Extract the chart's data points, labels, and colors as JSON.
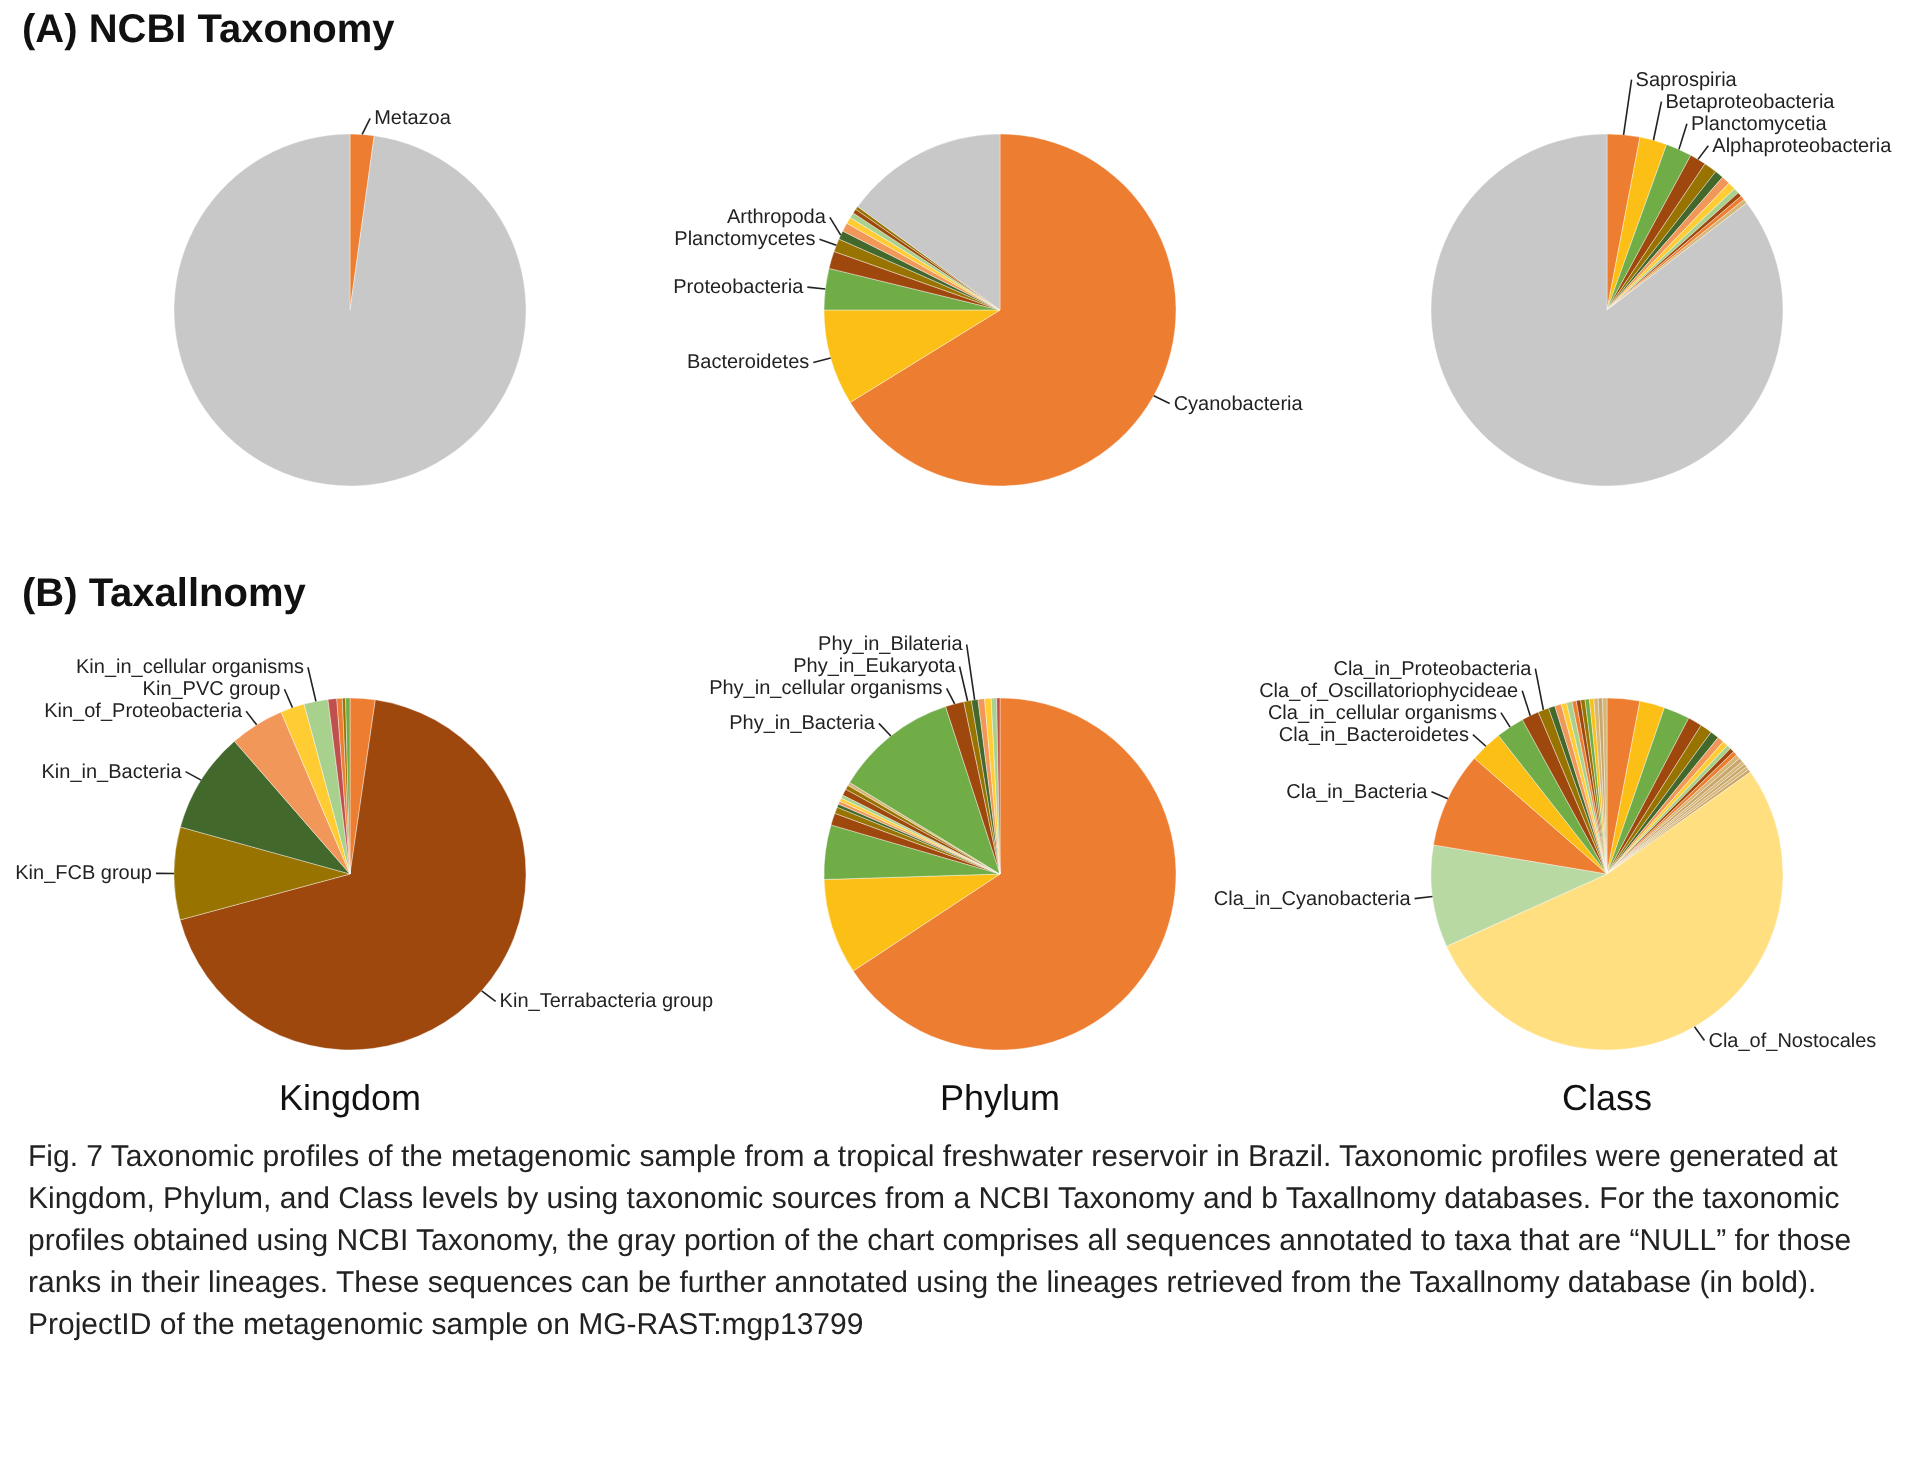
{
  "chart_data": [
    {
      "type": "pie",
      "title": "(A) NCBI Taxonomy",
      "categories": [
        "Metazoa",
        null
      ],
      "values": [
        2.2,
        97.8
      ],
      "colors": [
        "#ed7d31",
        "#c8c8c8"
      ]
    },
    {
      "type": "pie",
      "categories": [
        "Cyanobacteria",
        "Bacteroidetes",
        "Proteobacteria",
        null,
        "Planctomycetes",
        "Arthropoda",
        null,
        null,
        null,
        null,
        null,
        null
      ],
      "values": [
        66.2,
        8.8,
        3.8,
        1.6,
        1.2,
        0.8,
        0.8,
        0.6,
        0.5,
        0.4,
        0.3,
        15.0
      ],
      "colors": [
        "#ed7d31",
        "#fbbf16",
        "#70ad47",
        "#9e480e",
        "#997300",
        "#43682b",
        "#f1975a",
        "#ffcd33",
        "#a9d18e",
        "#9e480e",
        "#997300",
        "#c8c8c8"
      ]
    },
    {
      "type": "pie",
      "categories": [
        "Saprospiria",
        "Betaproteobacteria",
        "Planctomycetia",
        "Alphaproteobacteria",
        null,
        null,
        null,
        null,
        null,
        null,
        null,
        null,
        null
      ],
      "values": [
        3.0,
        2.5,
        2.4,
        1.5,
        1.2,
        0.8,
        0.8,
        0.7,
        0.5,
        0.4,
        0.4,
        0.4,
        85.4
      ],
      "colors": [
        "#ed7d31",
        "#fbbf16",
        "#70ad47",
        "#9e480e",
        "#997300",
        "#43682b",
        "#f1975a",
        "#ffcd33",
        "#a9d18e",
        "#9e480e",
        "#ed7d31",
        "#d6b676",
        "#c8c8c8"
      ]
    },
    {
      "type": "pie",
      "title": "(B) Taxallnomy",
      "xlabel": "Kingdom",
      "categories": [
        null,
        "Kin_Terrabacteria group",
        "Kin_FCB group",
        "Kin_in_Bacteria",
        "Kin_of_Proteobacteria",
        "Kin_PVC group",
        "Kin_in_cellular organisms",
        null,
        null,
        null,
        null
      ],
      "values": [
        2.3,
        68.5,
        8.5,
        9.3,
        5.0,
        2.2,
        2.2,
        0.8,
        0.5,
        0.3,
        0.4
      ],
      "colors": [
        "#ed7d31",
        "#9e480e",
        "#997300",
        "#43682b",
        "#f1975a",
        "#ffcd33",
        "#a9d18e",
        "#c0504d",
        "#ed7d31",
        "#997300",
        "#70ad47"
      ]
    },
    {
      "type": "pie",
      "xlabel": "Phylum",
      "categories": [
        null,
        null,
        null,
        null,
        null,
        null,
        null,
        null,
        null,
        null,
        null,
        null,
        "Phy_in_Bacteria",
        "Phy_in_cellular organisms",
        "Phy_in_Eukaryota",
        "Phy_in_Bilateria",
        null,
        null,
        null,
        null
      ],
      "values": [
        65.7,
        8.8,
        5.0,
        1.1,
        0.6,
        0.3,
        0.3,
        0.3,
        0.3,
        0.6,
        0.4,
        0.3,
        11.3,
        1.7,
        0.7,
        0.6,
        0.6,
        0.6,
        0.5,
        0.3
      ],
      "colors": [
        "#ed7d31",
        "#fbbf16",
        "#70ad47",
        "#9e480e",
        "#997300",
        "#43682b",
        "#f1975a",
        "#ffcd33",
        "#a9d18e",
        "#9e480e",
        "#997300",
        "#d6b676",
        "#70ad47",
        "#9e480e",
        "#997300",
        "#43682b",
        "#f1975a",
        "#ffcd33",
        "#a9d18e",
        "#c0504d"
      ]
    },
    {
      "type": "pie",
      "xlabel": "Class",
      "categories": [
        null,
        null,
        null,
        null,
        null,
        null,
        null,
        null,
        null,
        null,
        null,
        null,
        null,
        null,
        null,
        null,
        null,
        "Cla_of_Nostocales",
        "Cla_in_Cyanobacteria",
        "Cla_in_Bacteria",
        "Cla_in_Bacteroidetes",
        "Cla_in_cellular organisms",
        "Cla_of_Oscillatoriophycideae",
        "Cla_in_Proteobacteria",
        null,
        null,
        null,
        null,
        null,
        null,
        null,
        null,
        null,
        null,
        null,
        null
      ],
      "values": [
        3.0,
        2.3,
        2.4,
        1.3,
        1.1,
        0.8,
        0.6,
        0.5,
        0.4,
        0.4,
        0.4,
        0.4,
        0.4,
        0.3,
        0.3,
        0.3,
        0.3,
        53.2,
        9.4,
        8.8,
        3.0,
        2.6,
        1.6,
        1.0,
        0.6,
        0.6,
        0.5,
        0.5,
        0.4,
        0.4,
        0.4,
        0.4,
        0.4,
        0.4,
        0.4,
        0.4
      ],
      "colors": [
        "#ed7d31",
        "#fbbf16",
        "#70ad47",
        "#9e480e",
        "#997300",
        "#43682b",
        "#f1975a",
        "#ffcd33",
        "#a9d18e",
        "#9e480e",
        "#ed7d31",
        "#d6b676",
        "#c9a66b",
        "#d6b676",
        "#c9a66b",
        "#d6b676",
        "#c9a66b",
        "#ffdf80",
        "#b8d9a2",
        "#ed7d31",
        "#fbbf16",
        "#70ad47",
        "#9e480e",
        "#997300",
        "#43682b",
        "#f1975a",
        "#ffcd33",
        "#a9d18e",
        "#ed7d31",
        "#9e480e",
        "#997300",
        "#70ad47",
        "#fbbf16",
        "#d6b676",
        "#c9a66b",
        "#d6b676"
      ],
      "annotations": [
        "Fig. 7  Taxonomic profiles of the metagenomic sample from a tropical freshwater reservoir in Brazil. Taxonomic profiles were generated at Kingdom, Phylum, and Class levels by using taxonomic sources from a NCBI Taxonomy and b Taxallnomy databases. For the taxonomic profiles obtained using NCBI Taxonomy, the gray portion of the chart comprises all sequences annotated to taxa that are “NULL” for those ranks in their lineages. These sequences can be further annotated using the lineages retrieved from the Taxallnomy database (in bold). ProjectID of the metagenomic sample on MG-RAST:mgp13799"
      ]
    }
  ]
}
